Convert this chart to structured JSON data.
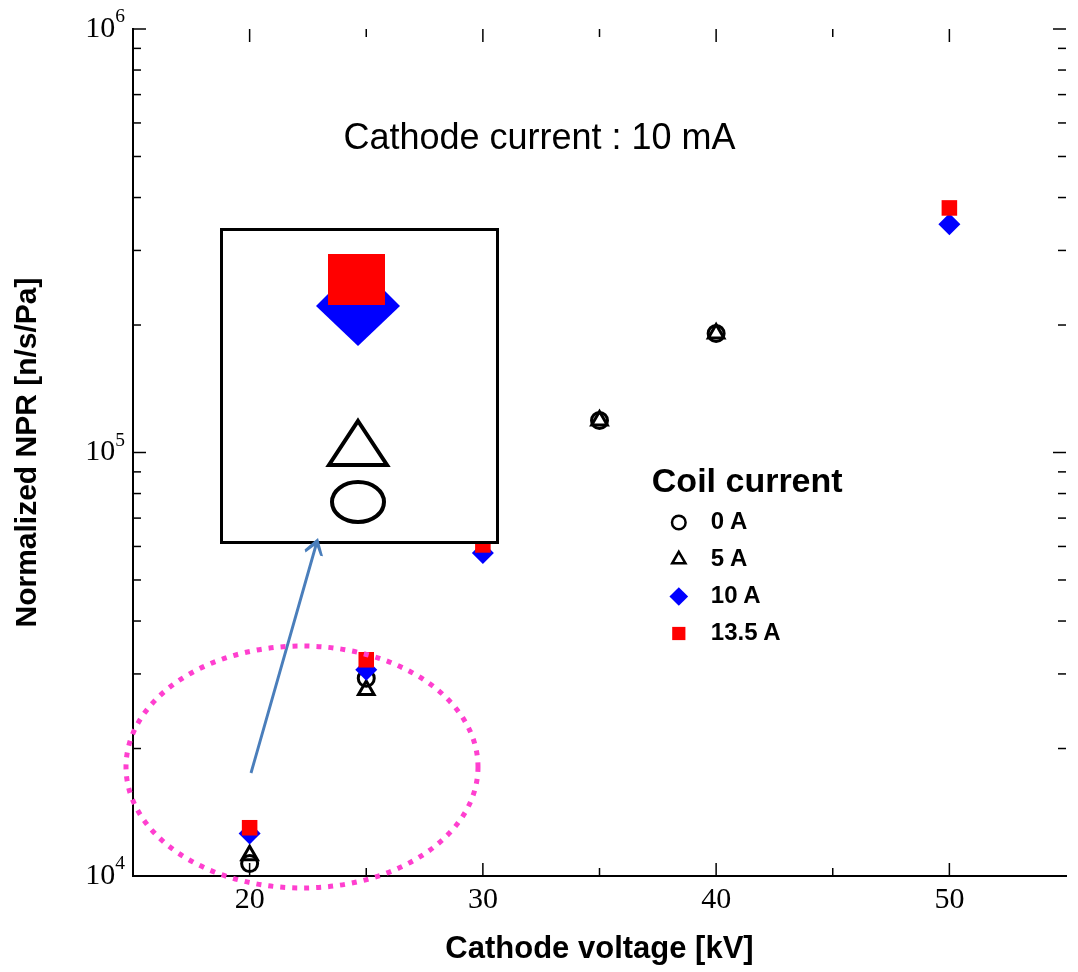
{
  "chart_data": {
    "type": "scatter",
    "xlabel": "Cathode voltage [kV]",
    "ylabel": "Normalized NPR [n/s/Pa]",
    "legend_title": "Coil current",
    "annotations": [
      "Cathode current : 10 mA"
    ],
    "log": "y",
    "grid": false,
    "legend": "right",
    "xlim": [
      15,
      55
    ],
    "ylim": [
      10000,
      1000000
    ],
    "xticks": [
      20,
      {
        "value": 25,
        "label": null
      },
      30,
      {
        "value": 35,
        "label": null
      },
      40,
      {
        "value": 45,
        "label": null
      },
      50
    ],
    "yticks": [
      {
        "value": 10000,
        "label": "10$^{4}$"
      },
      {
        "value": 20000,
        "label": null
      },
      {
        "value": 30000,
        "label": null
      },
      {
        "value": 40000,
        "label": null
      },
      {
        "value": 50000,
        "label": null
      },
      {
        "value": 60000,
        "label": null
      },
      {
        "value": 70000,
        "label": null
      },
      {
        "value": 80000,
        "label": null
      },
      {
        "value": 90000,
        "label": null
      },
      {
        "value": 100000,
        "label": "10$^{5}$"
      },
      {
        "value": 200000,
        "label": null
      },
      {
        "value": 300000,
        "label": null
      },
      {
        "value": 400000,
        "label": null
      },
      {
        "value": 500000,
        "label": null
      },
      {
        "value": 600000,
        "label": null
      },
      {
        "value": 700000,
        "label": null
      },
      {
        "value": 800000,
        "label": null
      },
      {
        "value": 900000,
        "label": null
      },
      {
        "value": 1000000,
        "label": "10$^{6}$"
      }
    ],
    "series": [
      {
        "name": "0 A",
        "color": "#000000",
        "marker": "circle",
        "x": [
          20,
          25,
          35,
          40
        ],
        "values": [
          10700,
          29300,
          119000,
          191000
        ]
      },
      {
        "name": "5 A",
        "color": "#000000",
        "marker": "triangle",
        "x": [
          20,
          25,
          35,
          40
        ],
        "values": [
          11200,
          27500,
          119000,
          191000
        ]
      },
      {
        "name": "10 A",
        "color": "#0000ff",
        "marker": "diamond",
        "x": [
          20,
          25,
          30,
          50
        ],
        "values": [
          12600,
          30700,
          57900,
          346000
        ]
      },
      {
        "name": "13.5 A",
        "color": "#ff0000",
        "marker": "square",
        "x": [
          20,
          25,
          30,
          50
        ],
        "values": [
          13000,
          32400,
          60500,
          378000
        ]
      }
    ]
  }
}
